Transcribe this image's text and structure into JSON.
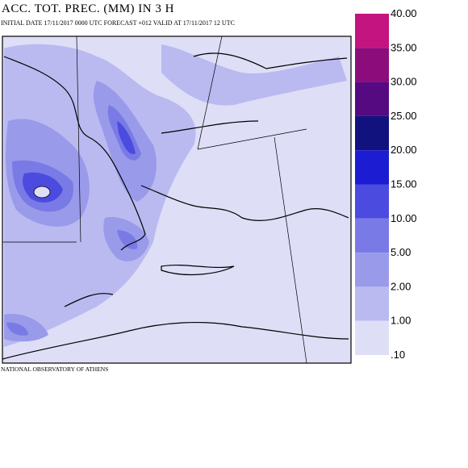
{
  "header": {
    "title": "ACC. TOT. PREC. (MM) IN 3 H",
    "subtitle": "INITIAL DATE 17/11/2017   0000 UTC  FORECAST +012  VALID AT  17/11/2017   12 UTC"
  },
  "legend": {
    "levels": [
      "40.00",
      "35.00",
      "30.00",
      "25.00",
      "20.00",
      "15.00",
      "10.00",
      "5.00",
      "2.00",
      "1.00",
      ".10"
    ],
    "colors": [
      "#c3147f",
      "#8c0c7c",
      "#560a82",
      "#12127e",
      "#1c1cd2",
      "#4b4be0",
      "#7a7ae6",
      "#9a9aea",
      "#babaf1",
      "#dedef7"
    ]
  },
  "footer": "NATIONAL OBSERVATORY OF ATHENS"
}
